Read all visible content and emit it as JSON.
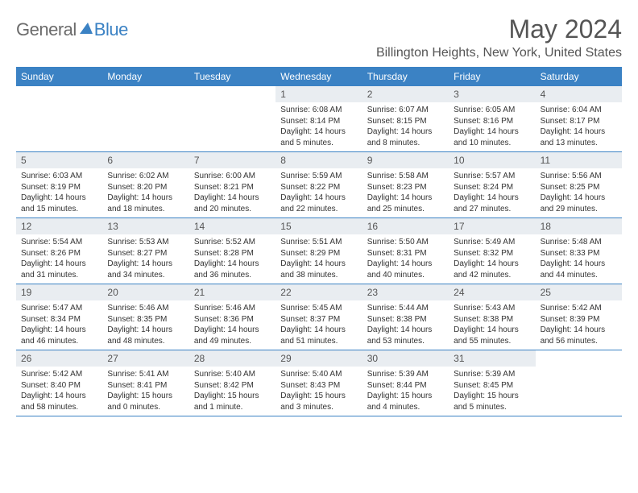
{
  "brand": {
    "part1": "General",
    "part2": "Blue"
  },
  "title": "May 2024",
  "location": "Billington Heights, New York, United States",
  "colors": {
    "accent": "#3b82c4",
    "daybar": "#e9edf1",
    "text": "#333333",
    "title": "#555555",
    "logo_gray": "#6b6b6b"
  },
  "dowLabels": [
    "Sunday",
    "Monday",
    "Tuesday",
    "Wednesday",
    "Thursday",
    "Friday",
    "Saturday"
  ],
  "weeks": [
    [
      null,
      null,
      null,
      {
        "n": "1",
        "sr": "Sunrise: 6:08 AM",
        "ss": "Sunset: 8:14 PM",
        "dl": "Daylight: 14 hours and 5 minutes."
      },
      {
        "n": "2",
        "sr": "Sunrise: 6:07 AM",
        "ss": "Sunset: 8:15 PM",
        "dl": "Daylight: 14 hours and 8 minutes."
      },
      {
        "n": "3",
        "sr": "Sunrise: 6:05 AM",
        "ss": "Sunset: 8:16 PM",
        "dl": "Daylight: 14 hours and 10 minutes."
      },
      {
        "n": "4",
        "sr": "Sunrise: 6:04 AM",
        "ss": "Sunset: 8:17 PM",
        "dl": "Daylight: 14 hours and 13 minutes."
      }
    ],
    [
      {
        "n": "5",
        "sr": "Sunrise: 6:03 AM",
        "ss": "Sunset: 8:19 PM",
        "dl": "Daylight: 14 hours and 15 minutes."
      },
      {
        "n": "6",
        "sr": "Sunrise: 6:02 AM",
        "ss": "Sunset: 8:20 PM",
        "dl": "Daylight: 14 hours and 18 minutes."
      },
      {
        "n": "7",
        "sr": "Sunrise: 6:00 AM",
        "ss": "Sunset: 8:21 PM",
        "dl": "Daylight: 14 hours and 20 minutes."
      },
      {
        "n": "8",
        "sr": "Sunrise: 5:59 AM",
        "ss": "Sunset: 8:22 PM",
        "dl": "Daylight: 14 hours and 22 minutes."
      },
      {
        "n": "9",
        "sr": "Sunrise: 5:58 AM",
        "ss": "Sunset: 8:23 PM",
        "dl": "Daylight: 14 hours and 25 minutes."
      },
      {
        "n": "10",
        "sr": "Sunrise: 5:57 AM",
        "ss": "Sunset: 8:24 PM",
        "dl": "Daylight: 14 hours and 27 minutes."
      },
      {
        "n": "11",
        "sr": "Sunrise: 5:56 AM",
        "ss": "Sunset: 8:25 PM",
        "dl": "Daylight: 14 hours and 29 minutes."
      }
    ],
    [
      {
        "n": "12",
        "sr": "Sunrise: 5:54 AM",
        "ss": "Sunset: 8:26 PM",
        "dl": "Daylight: 14 hours and 31 minutes."
      },
      {
        "n": "13",
        "sr": "Sunrise: 5:53 AM",
        "ss": "Sunset: 8:27 PM",
        "dl": "Daylight: 14 hours and 34 minutes."
      },
      {
        "n": "14",
        "sr": "Sunrise: 5:52 AM",
        "ss": "Sunset: 8:28 PM",
        "dl": "Daylight: 14 hours and 36 minutes."
      },
      {
        "n": "15",
        "sr": "Sunrise: 5:51 AM",
        "ss": "Sunset: 8:29 PM",
        "dl": "Daylight: 14 hours and 38 minutes."
      },
      {
        "n": "16",
        "sr": "Sunrise: 5:50 AM",
        "ss": "Sunset: 8:31 PM",
        "dl": "Daylight: 14 hours and 40 minutes."
      },
      {
        "n": "17",
        "sr": "Sunrise: 5:49 AM",
        "ss": "Sunset: 8:32 PM",
        "dl": "Daylight: 14 hours and 42 minutes."
      },
      {
        "n": "18",
        "sr": "Sunrise: 5:48 AM",
        "ss": "Sunset: 8:33 PM",
        "dl": "Daylight: 14 hours and 44 minutes."
      }
    ],
    [
      {
        "n": "19",
        "sr": "Sunrise: 5:47 AM",
        "ss": "Sunset: 8:34 PM",
        "dl": "Daylight: 14 hours and 46 minutes."
      },
      {
        "n": "20",
        "sr": "Sunrise: 5:46 AM",
        "ss": "Sunset: 8:35 PM",
        "dl": "Daylight: 14 hours and 48 minutes."
      },
      {
        "n": "21",
        "sr": "Sunrise: 5:46 AM",
        "ss": "Sunset: 8:36 PM",
        "dl": "Daylight: 14 hours and 49 minutes."
      },
      {
        "n": "22",
        "sr": "Sunrise: 5:45 AM",
        "ss": "Sunset: 8:37 PM",
        "dl": "Daylight: 14 hours and 51 minutes."
      },
      {
        "n": "23",
        "sr": "Sunrise: 5:44 AM",
        "ss": "Sunset: 8:38 PM",
        "dl": "Daylight: 14 hours and 53 minutes."
      },
      {
        "n": "24",
        "sr": "Sunrise: 5:43 AM",
        "ss": "Sunset: 8:38 PM",
        "dl": "Daylight: 14 hours and 55 minutes."
      },
      {
        "n": "25",
        "sr": "Sunrise: 5:42 AM",
        "ss": "Sunset: 8:39 PM",
        "dl": "Daylight: 14 hours and 56 minutes."
      }
    ],
    [
      {
        "n": "26",
        "sr": "Sunrise: 5:42 AM",
        "ss": "Sunset: 8:40 PM",
        "dl": "Daylight: 14 hours and 58 minutes."
      },
      {
        "n": "27",
        "sr": "Sunrise: 5:41 AM",
        "ss": "Sunset: 8:41 PM",
        "dl": "Daylight: 15 hours and 0 minutes."
      },
      {
        "n": "28",
        "sr": "Sunrise: 5:40 AM",
        "ss": "Sunset: 8:42 PM",
        "dl": "Daylight: 15 hours and 1 minute."
      },
      {
        "n": "29",
        "sr": "Sunrise: 5:40 AM",
        "ss": "Sunset: 8:43 PM",
        "dl": "Daylight: 15 hours and 3 minutes."
      },
      {
        "n": "30",
        "sr": "Sunrise: 5:39 AM",
        "ss": "Sunset: 8:44 PM",
        "dl": "Daylight: 15 hours and 4 minutes."
      },
      {
        "n": "31",
        "sr": "Sunrise: 5:39 AM",
        "ss": "Sunset: 8:45 PM",
        "dl": "Daylight: 15 hours and 5 minutes."
      },
      null
    ]
  ]
}
